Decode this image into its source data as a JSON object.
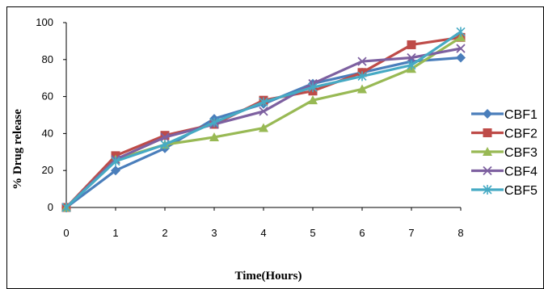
{
  "chart_data": {
    "type": "line",
    "title": "",
    "xlabel": "Time(Hours)",
    "ylabel": "% Drug release",
    "x": [
      0,
      1,
      2,
      3,
      4,
      5,
      6,
      7,
      8
    ],
    "xlim": [
      0,
      8
    ],
    "ylim": [
      0,
      100
    ],
    "yticks": [
      0,
      20,
      40,
      60,
      80,
      100
    ],
    "grid": false,
    "legend_position": "right",
    "series": [
      {
        "name": "CBF1",
        "marker": "diamond",
        "color": "#4a7ebb",
        "values": [
          0,
          20,
          32,
          48,
          56,
          67,
          73,
          79,
          81
        ]
      },
      {
        "name": "CBF2",
        "marker": "square",
        "color": "#be4b48",
        "values": [
          0,
          28,
          39,
          45,
          58,
          63,
          73,
          88,
          92
        ]
      },
      {
        "name": "CBF3",
        "marker": "triangle",
        "color": "#98b954",
        "values": [
          0,
          26,
          34,
          38,
          43,
          58,
          64,
          75,
          92
        ]
      },
      {
        "name": "CBF4",
        "marker": "x",
        "color": "#7d60a0",
        "values": [
          0,
          26,
          38,
          45,
          52,
          67,
          79,
          81,
          86
        ]
      },
      {
        "name": "CBF5",
        "marker": "star",
        "color": "#46aac4",
        "values": [
          0,
          25,
          34,
          46,
          57,
          65,
          71,
          77,
          95
        ]
      }
    ]
  }
}
